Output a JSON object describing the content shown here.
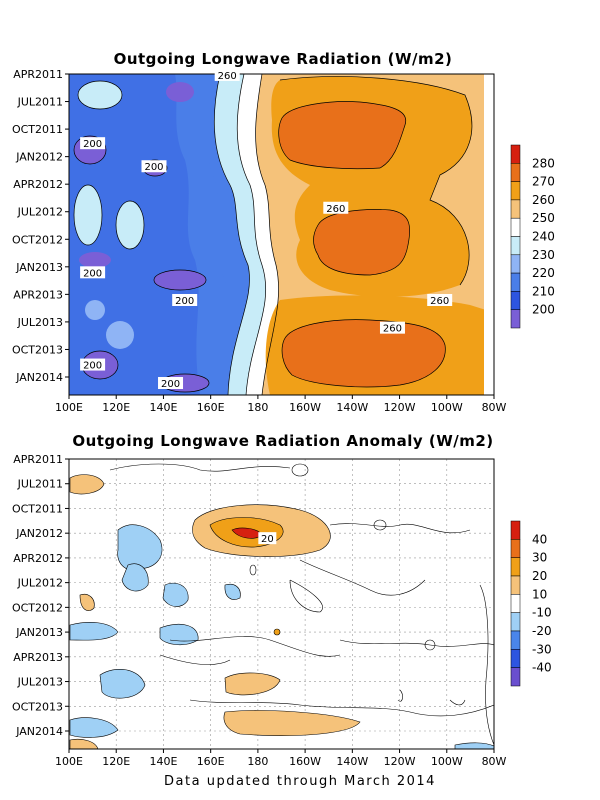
{
  "footer": "Data updated through March 2014",
  "chart_data": [
    {
      "type": "heatmap",
      "title": "Outgoing Longwave Radiation (W/m2)",
      "x_tick_labels": [
        "100E",
        "120E",
        "140E",
        "160E",
        "180",
        "160W",
        "140W",
        "120W",
        "100W",
        "80W"
      ],
      "y_tick_labels": [
        "APR2011",
        "JUL2011",
        "OCT2011",
        "JAN2012",
        "APR2012",
        "JUL2012",
        "OCT2012",
        "JAN2013",
        "APR2013",
        "JUL2013",
        "OCT2013",
        "JAN2014"
      ],
      "colorbar_levels": [
        200,
        210,
        220,
        230,
        240,
        250,
        260,
        270,
        280
      ],
      "colorbar_colors": [
        "#7a5fd6",
        "#2d55e0",
        "#4a7ee8",
        "#8fb4f5",
        "#c8ecf8",
        "#ffffff",
        "#f5c27a",
        "#f0a018",
        "#e8701a",
        "#d62010"
      ],
      "contour_labels": [
        {
          "text": "260",
          "x": 167,
          "y": 0.1
        },
        {
          "text": "200",
          "x": 110,
          "y": 7.5
        },
        {
          "text": "200",
          "x": 136,
          "y": 10
        },
        {
          "text": "260",
          "x": -147,
          "y": 14.5
        },
        {
          "text": "200",
          "x": 110,
          "y": 21.5
        },
        {
          "text": "200",
          "x": 149,
          "y": 24.5
        },
        {
          "text": "260",
          "x": -103,
          "y": 24.5
        },
        {
          "text": "260",
          "x": -123,
          "y": 27.5
        },
        {
          "text": "200",
          "x": 110,
          "y": 31.5
        },
        {
          "text": "200",
          "x": 143,
          "y": 33.5
        }
      ],
      "pattern": {
        "boundary_lon": [
          110,
          135,
          158,
          163,
          170,
          158,
          168,
          162,
          168,
          162,
          175,
          168,
          158
        ],
        "cores": [
          {
            "lon": -146,
            "month": 7
          },
          {
            "lon": -143,
            "month": 18
          },
          {
            "lon": -147,
            "month": 30
          }
        ]
      }
    },
    {
      "type": "heatmap",
      "title": "Outgoing Longwave Radiation Anomaly (W/m2)",
      "x_tick_labels": [
        "100E",
        "120E",
        "140E",
        "160E",
        "180",
        "160W",
        "140W",
        "120W",
        "100W",
        "80W"
      ],
      "y_tick_labels": [
        "APR2011",
        "JUL2011",
        "OCT2011",
        "JAN2012",
        "APR2012",
        "JUL2012",
        "OCT2012",
        "JAN2013",
        "APR2013",
        "JUL2013",
        "OCT2013",
        "JAN2014"
      ],
      "colorbar_levels": [
        -40,
        -30,
        -20,
        -10,
        10,
        20,
        30,
        40
      ],
      "colorbar_colors": [
        "#6a4fcf",
        "#2d55e0",
        "#4a85ea",
        "#9fd0f5",
        "#ffffff",
        "#f5c27a",
        "#f0a018",
        "#e8701a",
        "#d62010"
      ],
      "contour_labels": [
        {
          "text": "20",
          "x": -176,
          "y": 9.5
        }
      ],
      "positive_anomalies": [
        {
          "lon": 176,
          "month": 8,
          "peak": 30,
          "label": "20"
        },
        {
          "lon": -175,
          "month": 28,
          "peak": 15
        },
        {
          "lon": -158,
          "month": 33,
          "peak": 15
        },
        {
          "lon": 105,
          "month": 2,
          "peak": 15
        }
      ],
      "negative_anomalies": [
        {
          "lon": 125,
          "month": 11,
          "peak": -15
        },
        {
          "lon": 135,
          "month": 18,
          "peak": -15
        },
        {
          "lon": 125,
          "month": 28,
          "peak": -15
        },
        {
          "lon": 150,
          "month": 21,
          "peak": -15
        }
      ]
    }
  ]
}
